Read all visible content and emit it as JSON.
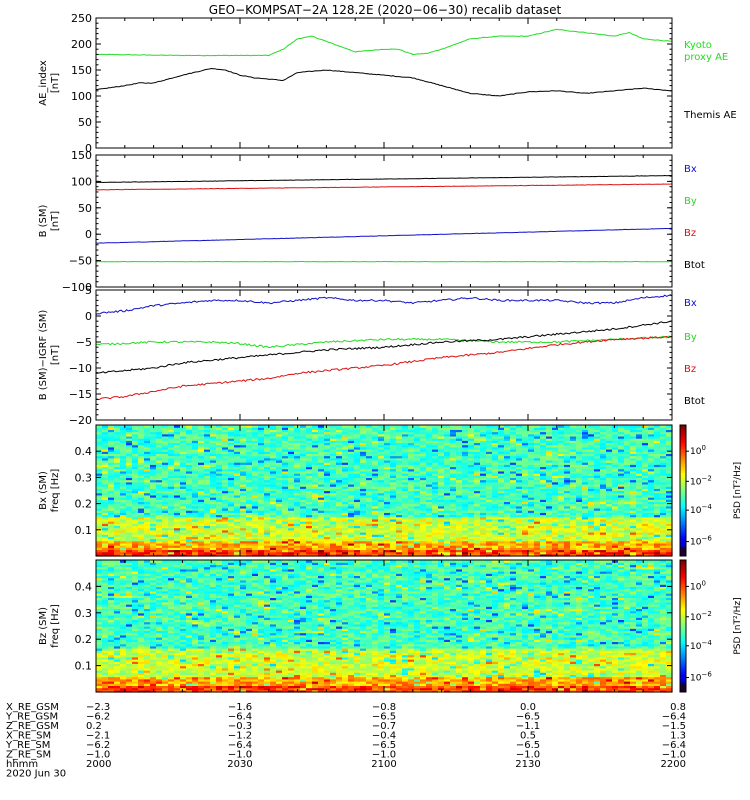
{
  "title": "GEO−KOMPSAT−2A 128.2E (2020−06−30) recalib dataset",
  "colors": {
    "black": "#000000",
    "green": "#22dd22",
    "red": "#dd1111",
    "blue": "#1111cc"
  },
  "time_axis": {
    "start": "2000",
    "end": "2200",
    "ticks": [
      "2000",
      "2030",
      "2100",
      "2130",
      "2200"
    ]
  },
  "chart_data": [
    {
      "type": "line",
      "ylabel": [
        "AE_index",
        "[nT]"
      ],
      "ylim": [
        0,
        250
      ],
      "yticks": [
        "0",
        "50",
        "100",
        "150",
        "200",
        "250"
      ],
      "series": [
        {
          "name": "Kyoto proxy AE",
          "label_lines": [
            "Kyoto",
            "proxy AE"
          ],
          "color": "green",
          "x": [
            0,
            30,
            40,
            60,
            65,
            70,
            75,
            80,
            85,
            90,
            100,
            105,
            110,
            115,
            120,
            125,
            130,
            140,
            150,
            160,
            170,
            180,
            185,
            190,
            200
          ],
          "values": [
            180,
            178,
            178,
            178,
            190,
            210,
            215,
            205,
            195,
            185,
            190,
            190,
            180,
            182,
            190,
            200,
            210,
            215,
            215,
            228,
            222,
            215,
            222,
            210,
            205
          ]
        },
        {
          "name": "Themis AE",
          "label_lines": [
            "Themis AE"
          ],
          "color": "black",
          "x": [
            0,
            10,
            15,
            20,
            30,
            40,
            45,
            50,
            55,
            65,
            70,
            80,
            100,
            110,
            120,
            130,
            140,
            150,
            160,
            170,
            180,
            190,
            200
          ],
          "values": [
            112,
            120,
            125,
            125,
            140,
            153,
            150,
            140,
            135,
            130,
            145,
            150,
            140,
            135,
            120,
            105,
            100,
            108,
            110,
            105,
            110,
            115,
            110
          ]
        }
      ]
    },
    {
      "type": "line",
      "ylabel": [
        "B (SM)",
        "[nT]"
      ],
      "ylim": [
        -100,
        150
      ],
      "yticks": [
        "−100",
        "−50",
        "0",
        "50",
        "100",
        "150"
      ],
      "series": [
        {
          "name": "Bx",
          "color": "blue",
          "x": [
            0,
            200
          ],
          "values": [
            -17,
            11
          ]
        },
        {
          "name": "By",
          "color": "green",
          "x": [
            0,
            200
          ],
          "values": [
            -52,
            -52
          ]
        },
        {
          "name": "Bz",
          "color": "red",
          "x": [
            0,
            200
          ],
          "values": [
            84,
            95
          ]
        },
        {
          "name": "Btot",
          "color": "black",
          "x": [
            0,
            200
          ],
          "values": [
            98,
            111
          ]
        }
      ]
    },
    {
      "type": "line",
      "ylabel": [
        "B (SM)−IGRF (SM)",
        "[nT]"
      ],
      "ylim": [
        -20,
        5
      ],
      "yticks": [
        "−20",
        "−15",
        "−10",
        "−5",
        "0",
        "5"
      ],
      "series": [
        {
          "name": "Bx",
          "color": "blue",
          "x": [
            0,
            10,
            20,
            30,
            40,
            50,
            60,
            70,
            80,
            90,
            100,
            110,
            120,
            130,
            140,
            150,
            160,
            170,
            180,
            190,
            200
          ],
          "values": [
            0.5,
            1,
            2,
            2.5,
            3,
            3,
            2.5,
            3,
            3.5,
            3,
            3,
            2.5,
            3,
            3.5,
            3,
            3,
            3,
            2.5,
            2.5,
            3.5,
            4
          ]
        },
        {
          "name": "By",
          "color": "green",
          "x": [
            0,
            20,
            40,
            50,
            60,
            70,
            80,
            100,
            120,
            140,
            160,
            180,
            200
          ],
          "values": [
            -5.5,
            -5,
            -5,
            -5.3,
            -6,
            -5.5,
            -5,
            -4.5,
            -4.5,
            -5,
            -5,
            -4.5,
            -4
          ]
        },
        {
          "name": "Bz",
          "color": "red",
          "x": [
            0,
            10,
            20,
            30,
            40,
            50,
            60,
            70,
            80,
            100,
            120,
            140,
            160,
            180,
            200
          ],
          "values": [
            -16,
            -15.5,
            -14.5,
            -13.5,
            -13,
            -12.5,
            -12,
            -11,
            -10.5,
            -9.5,
            -8,
            -7,
            -5.5,
            -4.5,
            -4
          ]
        },
        {
          "name": "Btot",
          "color": "black",
          "x": [
            0,
            10,
            20,
            30,
            40,
            50,
            60,
            70,
            80,
            100,
            120,
            140,
            160,
            180,
            200
          ],
          "values": [
            -11,
            -10.5,
            -10,
            -9,
            -8.5,
            -8,
            -7.5,
            -7,
            -6.5,
            -6,
            -5,
            -4.5,
            -3.5,
            -2.5,
            -1
          ]
        }
      ]
    },
    {
      "type": "heatmap",
      "ylabel": [
        "Bx (SM)",
        "freq [Hz]"
      ],
      "ylim": [
        0,
        0.5
      ],
      "yticks": [
        "0.1",
        "0.2",
        "0.3",
        "0.4"
      ],
      "colorbar": {
        "label": "PSD [nT²/Hz]",
        "ticks": [
          "10^0",
          "10^-2",
          "10^-4",
          "10^-6"
        ],
        "scale": "log"
      }
    },
    {
      "type": "heatmap",
      "ylabel": [
        "Bz (SM)",
        "freq [Hz]"
      ],
      "ylim": [
        0,
        0.5
      ],
      "yticks": [
        "0.1",
        "0.2",
        "0.3",
        "0.4"
      ],
      "colorbar": {
        "label": "PSD [nT²/Hz]",
        "ticks": [
          "10^0",
          "10^-2",
          "10^-4",
          "10^-6"
        ],
        "scale": "log"
      }
    }
  ],
  "ephemeris": {
    "rows": [
      {
        "label": "X_RE_GSM",
        "values": [
          "−2.3",
          "−1.6",
          "−0.8",
          "0.0",
          "0.8"
        ]
      },
      {
        "label": "Y_RE_GSM",
        "values": [
          "−6.2",
          "−6.4",
          "−6.5",
          "−6.5",
          "−6.4"
        ]
      },
      {
        "label": "Z_RE_GSM",
        "values": [
          "0.2",
          "−0.3",
          "−0.7",
          "−1.1",
          "−1.5"
        ]
      },
      {
        "label": "X_RE_SM",
        "values": [
          "−2.1",
          "−1.2",
          "−0.4",
          "0.5",
          "1.3"
        ]
      },
      {
        "label": "Y_RE_SM",
        "values": [
          "−6.2",
          "−6.4",
          "−6.5",
          "−6.5",
          "−6.4"
        ]
      },
      {
        "label": "Z_RE_SM",
        "values": [
          "−1.0",
          "−1.0",
          "−1.0",
          "−1.0",
          "−1.0"
        ]
      },
      {
        "label": "hhmm",
        "values": [
          "2000",
          "2030",
          "2100",
          "2130",
          "2200"
        ]
      }
    ],
    "date": "2020 Jun 30"
  }
}
